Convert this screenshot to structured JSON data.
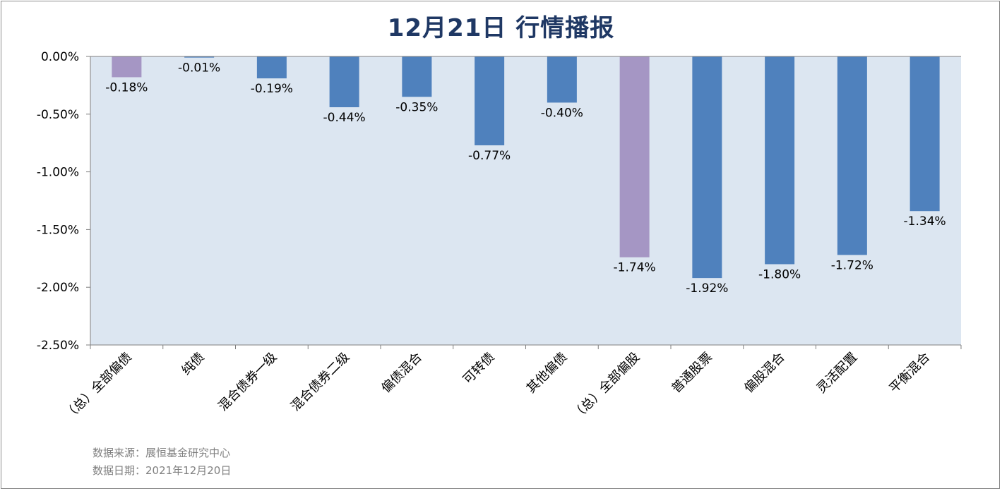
{
  "chart_data": {
    "type": "bar",
    "title": "12月21日  行情播报",
    "categories": [
      "（总）全部偏债",
      "纯债",
      "混合债券一级",
      "混合债券二级",
      "偏债混合",
      "可转债",
      "其他偏债",
      "（总）全部偏股",
      "普通股票",
      "偏股混合",
      "灵活配置",
      "平衡混合"
    ],
    "values": [
      -0.18,
      -0.01,
      -0.19,
      -0.44,
      -0.35,
      -0.77,
      -0.4,
      -1.74,
      -1.92,
      -1.8,
      -1.72,
      -1.34
    ],
    "value_labels": [
      "-0.18%",
      "-0.01%",
      "-0.19%",
      "-0.44%",
      "-0.35%",
      "-0.77%",
      "-0.40%",
      "-1.74%",
      "-1.92%",
      "-1.80%",
      "-1.72%",
      "-1.34%"
    ],
    "highlight": [
      true,
      false,
      false,
      false,
      false,
      false,
      false,
      true,
      false,
      false,
      false,
      false
    ],
    "ylim": [
      -2.5,
      0
    ],
    "yticks": [
      0,
      -0.5,
      -1.0,
      -1.5,
      -2.0,
      -2.5
    ],
    "ytick_labels": [
      "0.00%",
      "-0.50%",
      "-1.00%",
      "-1.50%",
      "-2.00%",
      "-2.50%"
    ],
    "xlabel": "",
    "ylabel": "",
    "grid": false,
    "colors": {
      "bar": "#4f81bd",
      "highlight": "#a596c4",
      "plot_bg": "#dce6f1",
      "axis": "#7f7f7f"
    }
  },
  "source": {
    "line1": "数据来源：展恒基金研究中心",
    "line2": "数据日期：2021年12月20日"
  }
}
